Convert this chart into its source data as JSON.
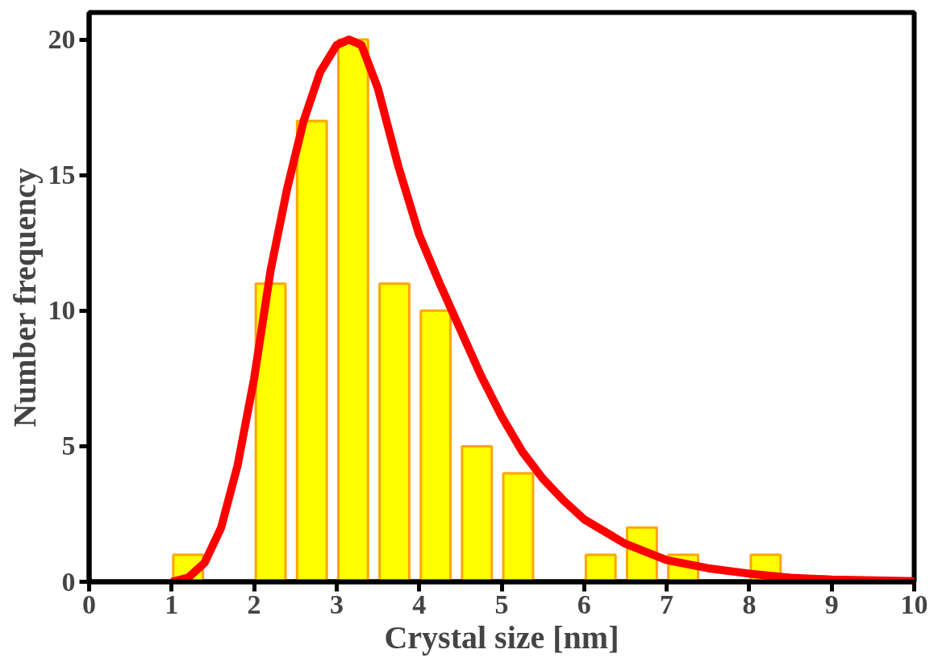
{
  "chart_data": {
    "type": "bar",
    "xlabel": "Crystal size [nm]",
    "ylabel": "Number frequency",
    "x": [
      1.2,
      2.2,
      2.7,
      3.2,
      3.7,
      4.2,
      4.7,
      5.2,
      6.2,
      6.7,
      7.2,
      8.2
    ],
    "series": [
      {
        "color": "#ffff00",
        "values": [
          1,
          11,
          17,
          20,
          11,
          10,
          5,
          4,
          1,
          2,
          1,
          1
        ]
      },
      {
        "type": "line",
        "color": "#ff0000",
        "x": [
          1.0,
          1.2,
          1.4,
          1.6,
          1.8,
          2.0,
          2.2,
          2.4,
          2.6,
          2.8,
          3.0,
          3.15,
          3.3,
          3.5,
          3.75,
          4.0,
          4.25,
          4.5,
          4.75,
          5.0,
          5.25,
          5.5,
          5.75,
          6.0,
          6.5,
          7.0,
          7.5,
          8.0,
          8.5,
          9.0,
          10.0
        ],
        "values": [
          0,
          0.15,
          0.7,
          2,
          4.3,
          7.5,
          11.5,
          14.5,
          17,
          18.8,
          19.8,
          20,
          19.8,
          18.2,
          15.3,
          12.8,
          11,
          9.3,
          7.6,
          6.1,
          4.8,
          3.8,
          3,
          2.3,
          1.4,
          0.8,
          0.5,
          0.3,
          0.15,
          0.08,
          0.02
        ]
      }
    ],
    "xlim": [
      0,
      10
    ],
    "xticks": [
      0,
      1,
      2,
      3,
      4,
      5,
      6,
      7,
      8,
      9,
      10
    ],
    "ylim": [
      0,
      21
    ],
    "yticks": [
      0,
      5,
      10,
      15,
      20
    ],
    "grid": false,
    "marker": "none",
    "line_style": "solid"
  }
}
